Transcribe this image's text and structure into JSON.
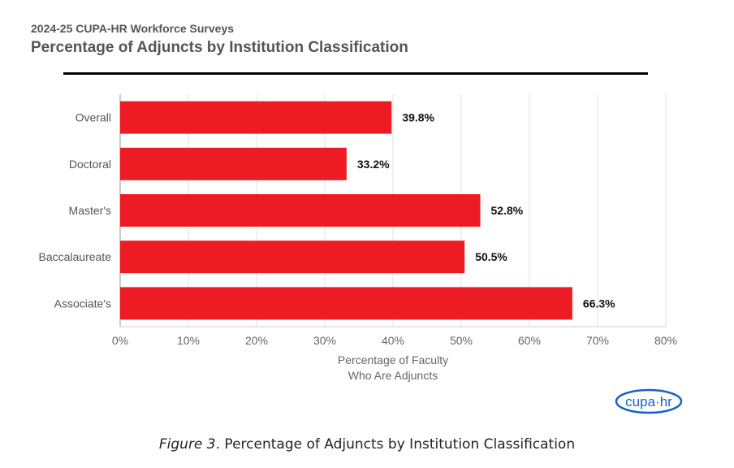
{
  "header": {
    "subtitle": "2024-25 CUPA-HR Workforce Surveys",
    "title": "Percentage of Adjuncts by Institution Classification"
  },
  "chart_data": {
    "type": "bar",
    "orientation": "horizontal",
    "categories": [
      "Overall",
      "Doctoral",
      "Master's",
      "Baccalaureate",
      "Associate's"
    ],
    "values": [
      39.8,
      33.2,
      52.8,
      50.5,
      66.3
    ],
    "data_labels": [
      "39.8%",
      "33.2%",
      "52.8%",
      "50.5%",
      "66.3%"
    ],
    "xlabel_lines": [
      "Percentage of Faculty",
      "Who Are Adjuncts"
    ],
    "xlim": [
      0,
      80
    ],
    "xticks": [
      0,
      10,
      20,
      30,
      40,
      50,
      60,
      70,
      80
    ],
    "xtick_labels": [
      "0%",
      "10%",
      "20%",
      "30%",
      "40%",
      "50%",
      "60%",
      "70%",
      "80%"
    ],
    "grid": "vertical",
    "bar_color": "#ed1c24"
  },
  "logo": {
    "text": "cupa·hr"
  },
  "caption": {
    "figure": "Figure 3",
    "text": ". Percentage of Adjuncts by Institution Classification"
  }
}
